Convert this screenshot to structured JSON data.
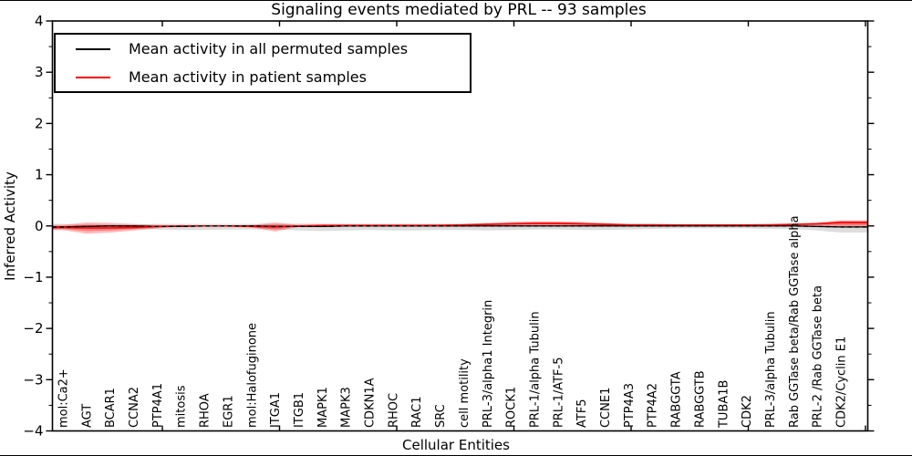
{
  "title": "Signaling events mediated by PRL -- 93 samples",
  "n_samples": 93,
  "legend": {
    "items": [
      {
        "label": "Mean activity in all permuted samples",
        "color": "#000000"
      },
      {
        "label": "Mean activity in patient samples",
        "color": "#ff0000"
      }
    ]
  },
  "axes": {
    "ylabel": "Inferred Activity",
    "xlabel": "Cellular Entities"
  },
  "chart_data": {
    "type": "line",
    "title": "Signaling events mediated by PRL -- 93 samples",
    "xlabel": "Cellular Entities",
    "ylabel": "Inferred Activity",
    "ylim": [
      -4,
      4
    ],
    "yticks": [
      4,
      3,
      2,
      1,
      0,
      -1,
      -2,
      -3,
      -4
    ],
    "grid": false,
    "legend_position": "upper left",
    "zero_line": {
      "style": "dashed",
      "color": "#000000",
      "y": 0
    },
    "categories": [
      "mol:Ca2+",
      "AGT",
      "BCAR1",
      "CCNA2",
      "PTP4A1",
      "mitosis",
      "RHOA",
      "EGR1",
      "mol:Halofuginone",
      "ITGA1",
      "ITGB1",
      "MAPK1",
      "MAPK3",
      "CDKN1A",
      "RHOC",
      "RAC1",
      "SRC",
      "cell motility",
      "PRL-3/alpha1 Integrin",
      "ROCK1",
      "PRL-1/alpha Tubulin",
      "PRL-1/ATF-5",
      "ATF5",
      "CCNE1",
      "PTP4A3",
      "PTP4A2",
      "RABGGTA",
      "RABGGTB",
      "TUBA1B",
      "CDK2",
      "PRL-3/alpha Tubulin",
      "Rab GGTase beta/Rab GGTase alpha",
      "PRL-2 /Rab GGTase beta",
      "CDK2/Cyclin E1"
    ],
    "series": [
      {
        "name": "Mean activity in all permuted samples",
        "color": "#000000",
        "values": [
          -0.02,
          -0.01,
          0,
          0,
          -0.01,
          -0.01,
          0,
          0,
          0,
          -0.01,
          -0.01,
          -0.01,
          0,
          0,
          0,
          0,
          0,
          0,
          0,
          0,
          0,
          0,
          0,
          0,
          0,
          0,
          0,
          0,
          0,
          0,
          0,
          0,
          -0.01,
          -0.02
        ]
      },
      {
        "name": "Mean activity in patient samples",
        "color": "#ff0000",
        "values": [
          -0.03,
          -0.04,
          -0.04,
          -0.03,
          -0.01,
          0,
          0,
          0,
          -0.01,
          -0.02,
          0,
          0.01,
          0.01,
          0.01,
          0.01,
          0.01,
          0.01,
          0.02,
          0.03,
          0.04,
          0.05,
          0.05,
          0.04,
          0.03,
          0.02,
          0.02,
          0.02,
          0.02,
          0.02,
          0.02,
          0.02,
          0.03,
          0.04,
          0.07
        ]
      }
    ],
    "bands": [
      {
        "name": "permuted-samples-range",
        "color": "#000000",
        "opacity": 0.13,
        "upper": [
          0.04,
          0.03,
          0.03,
          0.03,
          0.04,
          0.04,
          0.04,
          0.04,
          0.04,
          0.04,
          0.05,
          0.05,
          0.05,
          0.05,
          0.05,
          0.05,
          0.05,
          0.04,
          0.05,
          0.05,
          0.05,
          0.04,
          0.05,
          0.05,
          0.04,
          0.04,
          0.03,
          0.03,
          0.03,
          0.03,
          0.04,
          0.04,
          0.06,
          0.08
        ],
        "lower": [
          -0.07,
          -0.05,
          -0.05,
          -0.06,
          -0.07,
          -0.08,
          -0.08,
          -0.07,
          -0.07,
          -0.07,
          -0.09,
          -0.1,
          -0.09,
          -0.08,
          -0.09,
          -0.09,
          -0.08,
          -0.08,
          -0.09,
          -0.08,
          -0.07,
          -0.07,
          -0.08,
          -0.08,
          -0.07,
          -0.06,
          -0.05,
          -0.05,
          -0.05,
          -0.05,
          -0.06,
          -0.06,
          -0.09,
          -0.13
        ]
      },
      {
        "name": "patient-samples-range",
        "color": "#ff0000",
        "opacity": 0.28,
        "upper": [
          0.02,
          0.07,
          0.06,
          0.04,
          0.02,
          0.01,
          0.01,
          0.01,
          0.02,
          0.07,
          0.02,
          0.02,
          0.02,
          0.02,
          0.02,
          0.02,
          0.03,
          0.04,
          0.06,
          0.08,
          0.09,
          0.09,
          0.08,
          0.06,
          0.04,
          0.04,
          0.03,
          0.03,
          0.03,
          0.03,
          0.04,
          0.05,
          0.07,
          0.11
        ],
        "lower": [
          -0.08,
          -0.15,
          -0.13,
          -0.09,
          -0.05,
          -0.01,
          -0.01,
          -0.01,
          -0.03,
          -0.11,
          -0.02,
          -0.01,
          0,
          0,
          0,
          0,
          0,
          0,
          0.01,
          0.01,
          0.01,
          0.01,
          0.01,
          0,
          0,
          0,
          0,
          0,
          0,
          0,
          0,
          0.01,
          0.01,
          -0.02
        ]
      }
    ]
  }
}
